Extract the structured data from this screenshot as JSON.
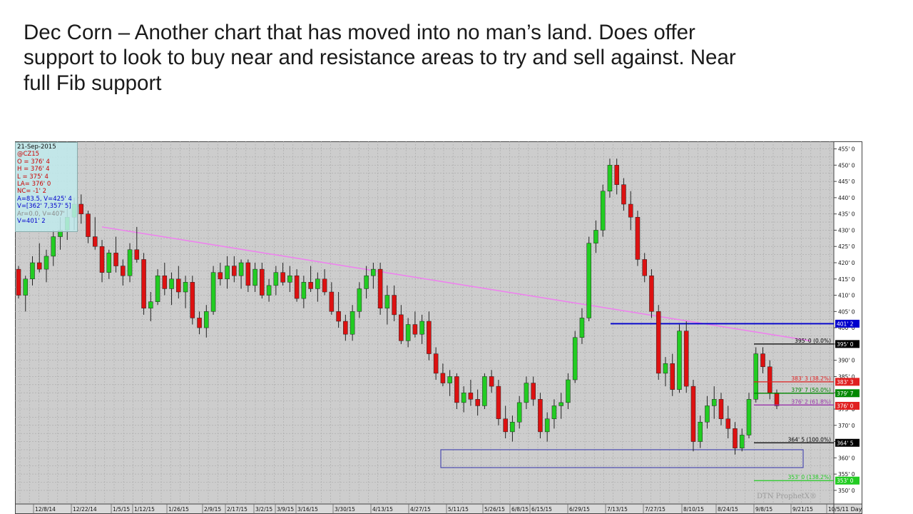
{
  "slide": {
    "title": "Dec Corn – Another chart that has moved into no man’s land.  Does offer support to look to buy near and resistance areas to try and sell against.  Near full Fib support"
  },
  "info_box": {
    "date": "21-Sep-2015",
    "symbol": "@CZ15",
    "open": "O = 376' 4",
    "high": "H = 376' 4",
    "low": "L = 375' 4",
    "last": "LA= 376' 0",
    "net_change": "NC= -1' 2",
    "avg": "A=83.5, V=425' 4",
    "vol": "V=[362' 7,357' 5]",
    "faded": "Ar=0.0, V=407'",
    "value": "V=401' 2"
  },
  "chart_data": {
    "type": "candlestick",
    "title": "",
    "xlabel": "",
    "ylabel": "",
    "ylim": [
      348,
      456
    ],
    "grid": true,
    "watermark": "DTN ProphetX®",
    "x_ticks": [
      "12/8/14",
      "12/22/14",
      "1/5/15",
      "1/12/15",
      "1/26/15",
      "2/9/15",
      "2/17/15",
      "3/2/15",
      "3/9/15",
      "3/16/15",
      "3/30/15",
      "4/13/15",
      "4/27/15",
      "5/11/15",
      "5/26/15",
      "6/8/15",
      "6/15/15",
      "6/29/15",
      "7/13/15",
      "7/27/15",
      "8/10/15",
      "8/24/15",
      "9/8/15",
      "9/21/15",
      "10/5/1"
    ],
    "y_ticks": [
      "350' 0",
      "355' 0",
      "360' 0",
      "365' 0",
      "370' 0",
      "375' 0",
      "380' 0",
      "385' 0",
      "390' 0",
      "395' 0",
      "400' 0",
      "405' 0",
      "410' 0",
      "415' 0",
      "420' 0",
      "425' 0",
      "430' 0",
      "435' 0",
      "440' 0",
      "445' 0",
      "450' 0",
      "455' 0"
    ],
    "interval_label": "1 Day",
    "price_tags": [
      {
        "value": 401.25,
        "label": "401' 2",
        "color": "#0000cc"
      },
      {
        "value": 395,
        "label": "395' 0",
        "color": "#000000"
      },
      {
        "value": 383.375,
        "label": "383' 3",
        "color": "#e02020"
      },
      {
        "value": 379.875,
        "label": "379' 7",
        "color": "#008800"
      },
      {
        "value": 376,
        "label": "376' 0",
        "color": "#e02020"
      },
      {
        "value": 364.625,
        "label": "364' 5",
        "color": "#000000"
      },
      {
        "value": 353,
        "label": "353' 0",
        "color": "#22cc22"
      }
    ],
    "fib_levels": [
      {
        "value": 395,
        "label": "395' 0 (0.0%)",
        "color": "#000000"
      },
      {
        "value": 383.375,
        "label": "383' 3 (38.2%)",
        "color": "#e02020"
      },
      {
        "value": 379.875,
        "label": "379' 7 (50.0%)",
        "color": "#008800"
      },
      {
        "value": 376.25,
        "label": "376' 2 (61.8%)",
        "color": "#9933aa"
      },
      {
        "value": 364.625,
        "label": "364' 5 (100.0%)",
        "color": "#000000"
      },
      {
        "value": 353,
        "label": "353' 0 (138.2%)",
        "color": "#22cc22"
      }
    ],
    "resistance_line": {
      "value": 401.25,
      "color": "#0000cc"
    },
    "trendline": {
      "from": {
        "date": "1/5/15",
        "value": 431
      },
      "to": {
        "date": "9/21/15",
        "value": 396
      },
      "color": "#ee82ee"
    },
    "support_box": {
      "from_date": "5/11/15",
      "to_date": "9/21/15",
      "low": 357,
      "high": 362.5,
      "color": "#3333aa"
    },
    "candles": [
      [
        418,
        419,
        409,
        410
      ],
      [
        410,
        416,
        405,
        415
      ],
      [
        415,
        422,
        413,
        420
      ],
      [
        420,
        426,
        417,
        418
      ],
      [
        418,
        424,
        414,
        422
      ],
      [
        422,
        430,
        419,
        428
      ],
      [
        428,
        434,
        424,
        430
      ],
      [
        430,
        437,
        427,
        434
      ],
      [
        434,
        440,
        430,
        438
      ],
      [
        438,
        441,
        432,
        435
      ],
      [
        435,
        436,
        426,
        428
      ],
      [
        428,
        434,
        424,
        425
      ],
      [
        425,
        427,
        414,
        417
      ],
      [
        417,
        424,
        415,
        423
      ],
      [
        423,
        428,
        417,
        419
      ],
      [
        419,
        421,
        413,
        416
      ],
      [
        416,
        426,
        414,
        424
      ],
      [
        424,
        431,
        420,
        421
      ],
      [
        421,
        423,
        404,
        406
      ],
      [
        406,
        411,
        402,
        408
      ],
      [
        408,
        418,
        407,
        416
      ],
      [
        416,
        420,
        410,
        412
      ],
      [
        412,
        417,
        407,
        415
      ],
      [
        415,
        419,
        409,
        411
      ],
      [
        411,
        416,
        406,
        414
      ],
      [
        414,
        416,
        401,
        403
      ],
      [
        403,
        405,
        398,
        400
      ],
      [
        400,
        407,
        397,
        405
      ],
      [
        405,
        419,
        404,
        417
      ],
      [
        417,
        420,
        413,
        415
      ],
      [
        415,
        422,
        412,
        419
      ],
      [
        419,
        422,
        414,
        416
      ],
      [
        416,
        421,
        412,
        420
      ],
      [
        420,
        421,
        411,
        413
      ],
      [
        413,
        420,
        411,
        418
      ],
      [
        418,
        420,
        409,
        410
      ],
      [
        410,
        415,
        408,
        413
      ],
      [
        413,
        419,
        410,
        417
      ],
      [
        417,
        420,
        413,
        414
      ],
      [
        414,
        419,
        411,
        416
      ],
      [
        416,
        418,
        408,
        409
      ],
      [
        409,
        416,
        406,
        414
      ],
      [
        414,
        419,
        411,
        412
      ],
      [
        412,
        417,
        408,
        415
      ],
      [
        415,
        418,
        410,
        411
      ],
      [
        411,
        414,
        404,
        405
      ],
      [
        405,
        411,
        400,
        402
      ],
      [
        402,
        404,
        396,
        398
      ],
      [
        398,
        407,
        396,
        405
      ],
      [
        405,
        414,
        403,
        412
      ],
      [
        412,
        419,
        409,
        416
      ],
      [
        416,
        420,
        412,
        418
      ],
      [
        418,
        420,
        404,
        406
      ],
      [
        406,
        413,
        401,
        410
      ],
      [
        410,
        413,
        402,
        404
      ],
      [
        404,
        407,
        395,
        396
      ],
      [
        396,
        403,
        394,
        401
      ],
      [
        401,
        405,
        397,
        398
      ],
      [
        398,
        404,
        395,
        402
      ],
      [
        402,
        405,
        390,
        392
      ],
      [
        392,
        394,
        384,
        386
      ],
      [
        386,
        389,
        382,
        383
      ],
      [
        383,
        387,
        379,
        385
      ],
      [
        385,
        386,
        375,
        377
      ],
      [
        377,
        382,
        374,
        380
      ],
      [
        380,
        384,
        376,
        378
      ],
      [
        378,
        381,
        373,
        376
      ],
      [
        376,
        386,
        375,
        385
      ],
      [
        385,
        387,
        380,
        382
      ],
      [
        382,
        384,
        370,
        372
      ],
      [
        372,
        376,
        366,
        368
      ],
      [
        368,
        373,
        365,
        371
      ],
      [
        371,
        379,
        369,
        377
      ],
      [
        377,
        385,
        375,
        383
      ],
      [
        383,
        385,
        376,
        378
      ],
      [
        378,
        380,
        366,
        368
      ],
      [
        368,
        374,
        365,
        372
      ],
      [
        372,
        378,
        369,
        376
      ],
      [
        376,
        380,
        372,
        377
      ],
      [
        377,
        386,
        375,
        384
      ],
      [
        384,
        399,
        383,
        397
      ],
      [
        397,
        406,
        395,
        403
      ],
      [
        403,
        428,
        402,
        426
      ],
      [
        426,
        433,
        423,
        430
      ],
      [
        430,
        444,
        428,
        442
      ],
      [
        442,
        452,
        440,
        450
      ],
      [
        450,
        452,
        441,
        444
      ],
      [
        444,
        446,
        436,
        438
      ],
      [
        438,
        442,
        430,
        434
      ],
      [
        434,
        436,
        419,
        421
      ],
      [
        421,
        423,
        414,
        416
      ],
      [
        416,
        418,
        403,
        405
      ],
      [
        405,
        407,
        384,
        386
      ],
      [
        386,
        391,
        382,
        389
      ],
      [
        389,
        392,
        379,
        381
      ],
      [
        381,
        401,
        380,
        399
      ],
      [
        399,
        402,
        380,
        382
      ],
      [
        382,
        384,
        362,
        365
      ],
      [
        365,
        373,
        363,
        371
      ],
      [
        371,
        379,
        369,
        376
      ],
      [
        376,
        382,
        372,
        378
      ],
      [
        378,
        380,
        370,
        372
      ],
      [
        372,
        376,
        366,
        369
      ],
      [
        369,
        371,
        361,
        363
      ],
      [
        363,
        369,
        362,
        367
      ],
      [
        367,
        380,
        366,
        378
      ],
      [
        378,
        394,
        377,
        392
      ],
      [
        392,
        394,
        386,
        388
      ],
      [
        388,
        390,
        378,
        380
      ],
      [
        380,
        381,
        375,
        376
      ]
    ]
  }
}
